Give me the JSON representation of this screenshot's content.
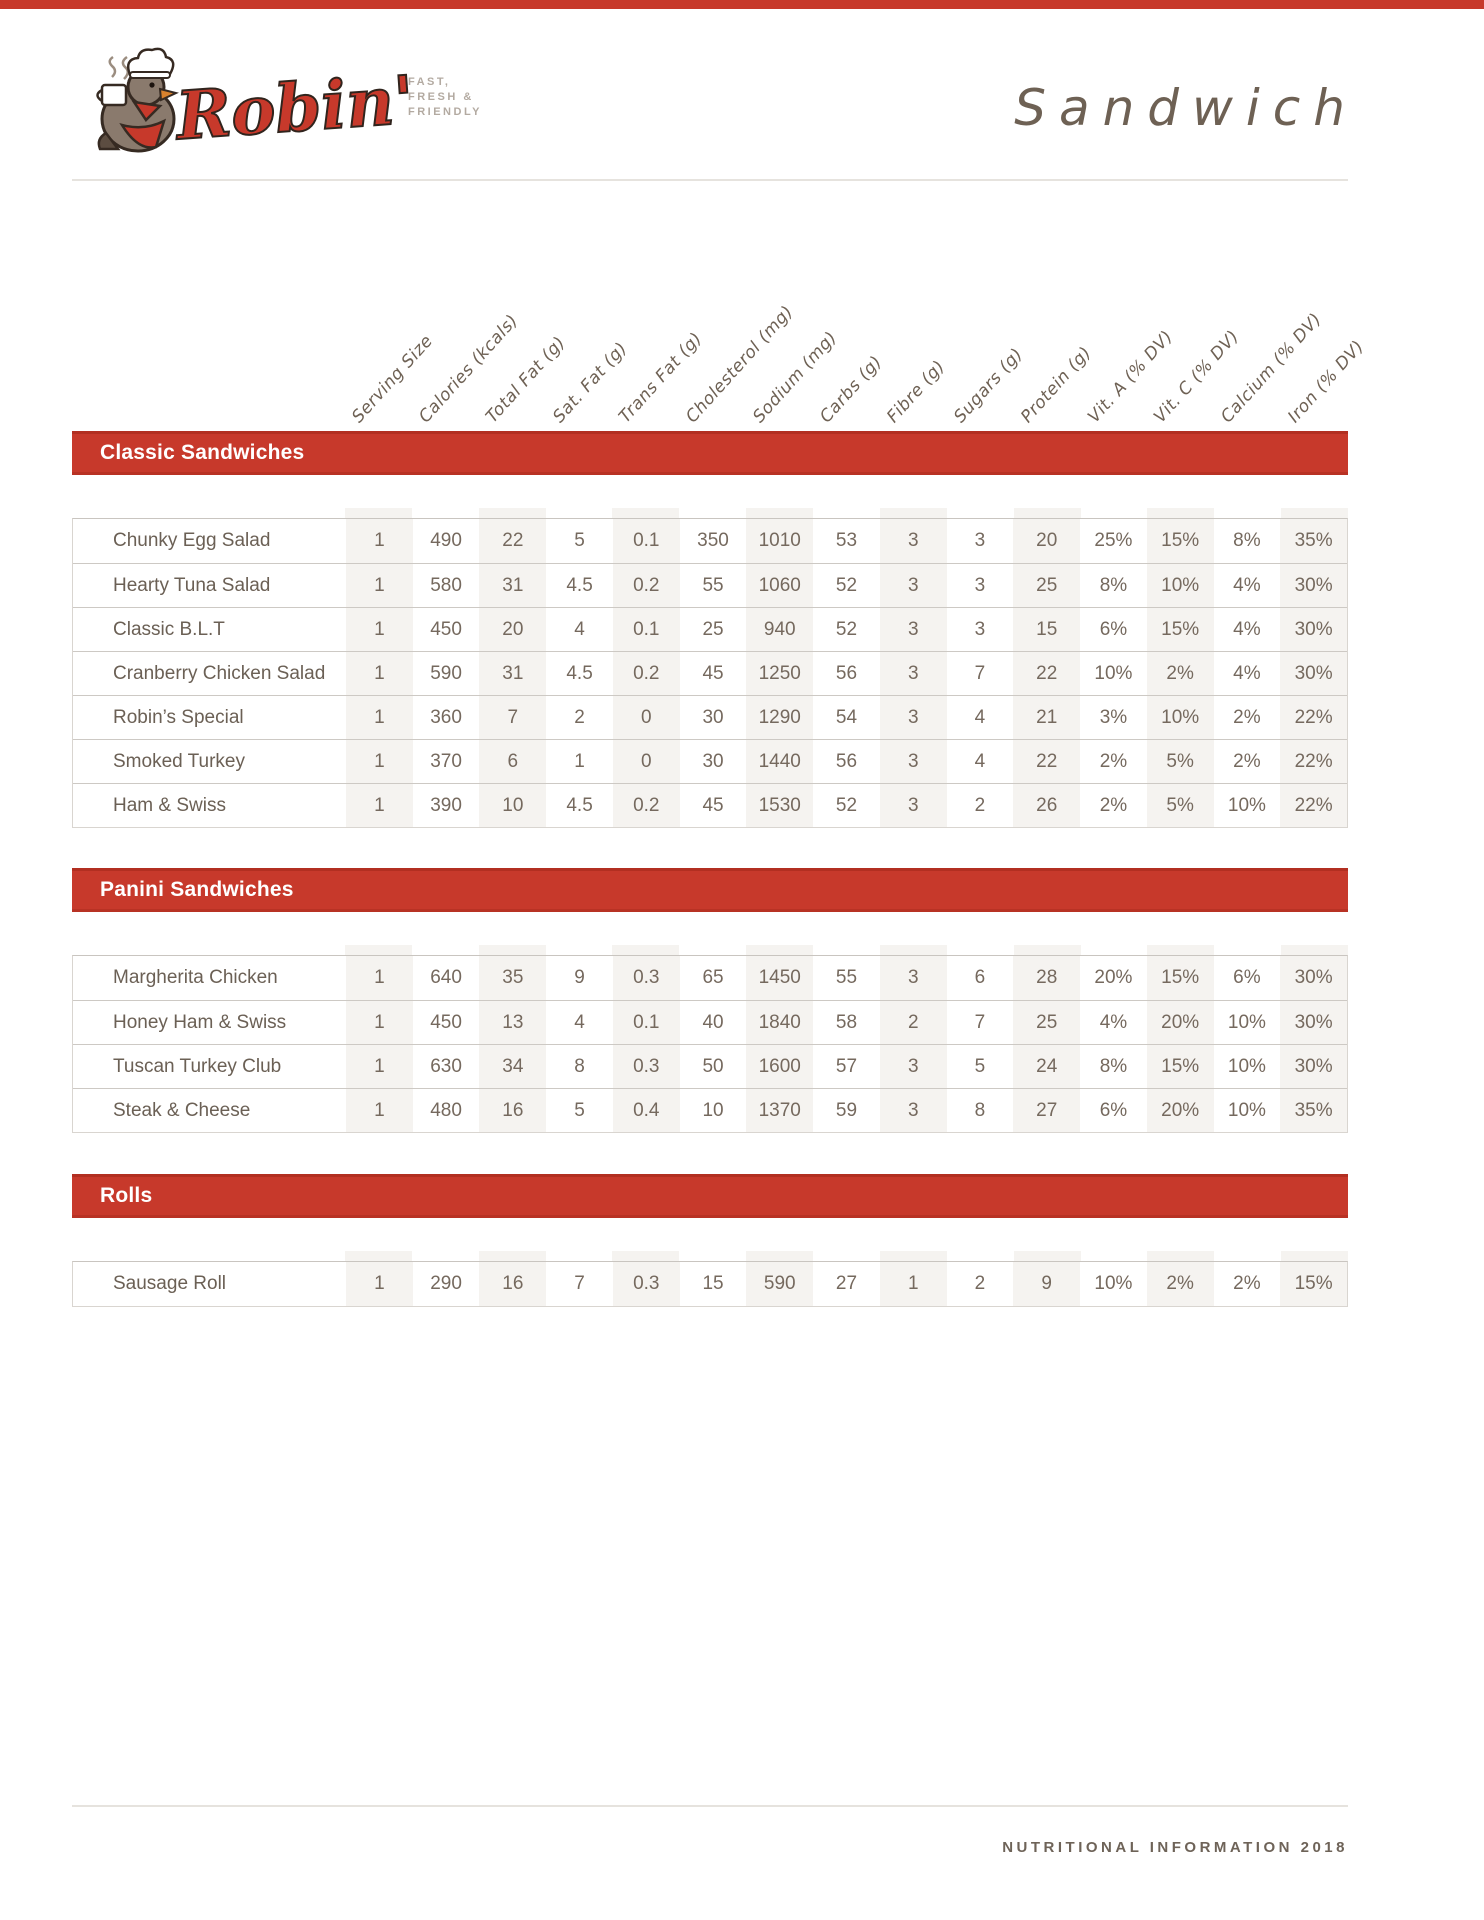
{
  "brand": {
    "name": "Robin's",
    "tagline_lines": [
      "FAST,",
      "FRESH &",
      "FRIENDLY"
    ]
  },
  "page_title": "Sandwich",
  "columns": [
    "Serving Size",
    "Calories (kcals)",
    "Total Fat (g)",
    "Sat. Fat (g)",
    "Trans Fat (g)",
    "Cholesterol (mg)",
    "Sodium (mg)",
    "Carbs (g)",
    "Fibre (g)",
    "Sugars (g)",
    "Protein (g)",
    "Vit. A (% DV)",
    "Vit. C (% DV)",
    "Calcium (% DV)",
    "Iron (% DV)"
  ],
  "sections": [
    {
      "title": "Classic Sandwiches",
      "rows": [
        {
          "name": "Chunky Egg Salad",
          "values": [
            "1",
            "490",
            "22",
            "5",
            "0.1",
            "350",
            "1010",
            "53",
            "3",
            "3",
            "20",
            "25%",
            "15%",
            "8%",
            "35%"
          ]
        },
        {
          "name": "Hearty Tuna Salad",
          "values": [
            "1",
            "580",
            "31",
            "4.5",
            "0.2",
            "55",
            "1060",
            "52",
            "3",
            "3",
            "25",
            "8%",
            "10%",
            "4%",
            "30%"
          ]
        },
        {
          "name": "Classic B.L.T",
          "values": [
            "1",
            "450",
            "20",
            "4",
            "0.1",
            "25",
            "940",
            "52",
            "3",
            "3",
            "15",
            "6%",
            "15%",
            "4%",
            "30%"
          ]
        },
        {
          "name": "Cranberry Chicken Salad",
          "values": [
            "1",
            "590",
            "31",
            "4.5",
            "0.2",
            "45",
            "1250",
            "56",
            "3",
            "7",
            "22",
            "10%",
            "2%",
            "4%",
            "30%"
          ]
        },
        {
          "name": "Robin’s Special",
          "values": [
            "1",
            "360",
            "7",
            "2",
            "0",
            "30",
            "1290",
            "54",
            "3",
            "4",
            "21",
            "3%",
            "10%",
            "2%",
            "22%"
          ]
        },
        {
          "name": "Smoked Turkey",
          "values": [
            "1",
            "370",
            "6",
            "1",
            "0",
            "30",
            "1440",
            "56",
            "3",
            "4",
            "22",
            "2%",
            "5%",
            "2%",
            "22%"
          ]
        },
        {
          "name": "Ham & Swiss",
          "values": [
            "1",
            "390",
            "10",
            "4.5",
            "0.2",
            "45",
            "1530",
            "52",
            "3",
            "2",
            "26",
            "2%",
            "5%",
            "10%",
            "22%"
          ]
        }
      ]
    },
    {
      "title": "Panini Sandwiches",
      "rows": [
        {
          "name": "Margherita Chicken",
          "values": [
            "1",
            "640",
            "35",
            "9",
            "0.3",
            "65",
            "1450",
            "55",
            "3",
            "6",
            "28",
            "20%",
            "15%",
            "6%",
            "30%"
          ]
        },
        {
          "name": "Honey Ham & Swiss",
          "values": [
            "1",
            "450",
            "13",
            "4",
            "0.1",
            "40",
            "1840",
            "58",
            "2",
            "7",
            "25",
            "4%",
            "20%",
            "10%",
            "30%"
          ]
        },
        {
          "name": "Tuscan Turkey Club",
          "values": [
            "1",
            "630",
            "34",
            "8",
            "0.3",
            "50",
            "1600",
            "57",
            "3",
            "5",
            "24",
            "8%",
            "15%",
            "10%",
            "30%"
          ]
        },
        {
          "name": "Steak & Cheese",
          "values": [
            "1",
            "480",
            "16",
            "5",
            "0.4",
            "10",
            "1370",
            "59",
            "3",
            "8",
            "27",
            "6%",
            "20%",
            "10%",
            "35%"
          ]
        }
      ]
    },
    {
      "title": "Rolls",
      "rows": [
        {
          "name": "Sausage Roll",
          "values": [
            "1",
            "290",
            "16",
            "7",
            "0.3",
            "15",
            "590",
            "27",
            "1",
            "2",
            "9",
            "10%",
            "2%",
            "2%",
            "15%"
          ]
        }
      ]
    }
  ],
  "footer": {
    "text": "NUTRITIONAL INFORMATION 2018"
  },
  "colors": {
    "accent_red": "#c7392b",
    "stripe": "#f5f3f0",
    "text": "#6e6257",
    "tagline_gray": "#b3aaa1"
  }
}
